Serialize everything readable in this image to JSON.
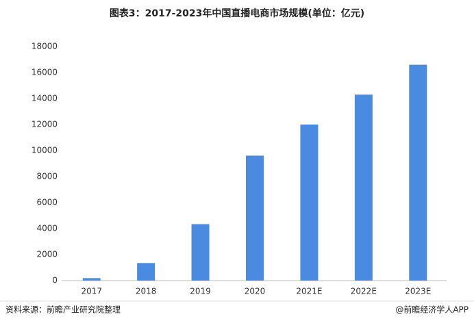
{
  "chart_data": {
    "type": "bar",
    "title": "图表3：2017-2023年中国直播电商市场规模(单位：亿元)",
    "categories": [
      "2017",
      "2018",
      "2019",
      "2020",
      "2021E",
      "2022E",
      "2023E"
    ],
    "values": [
      190,
      1350,
      4340,
      9610,
      12000,
      14300,
      16600
    ],
    "color": "#4a8ae0",
    "ylim": [
      0,
      18000
    ],
    "yticks": [
      0,
      2000,
      4000,
      6000,
      8000,
      10000,
      12000,
      14000,
      16000,
      18000
    ],
    "grid": false,
    "source": "资料来源：前瞻产业研究院整理",
    "credit": "@前瞻经济学人APP"
  }
}
